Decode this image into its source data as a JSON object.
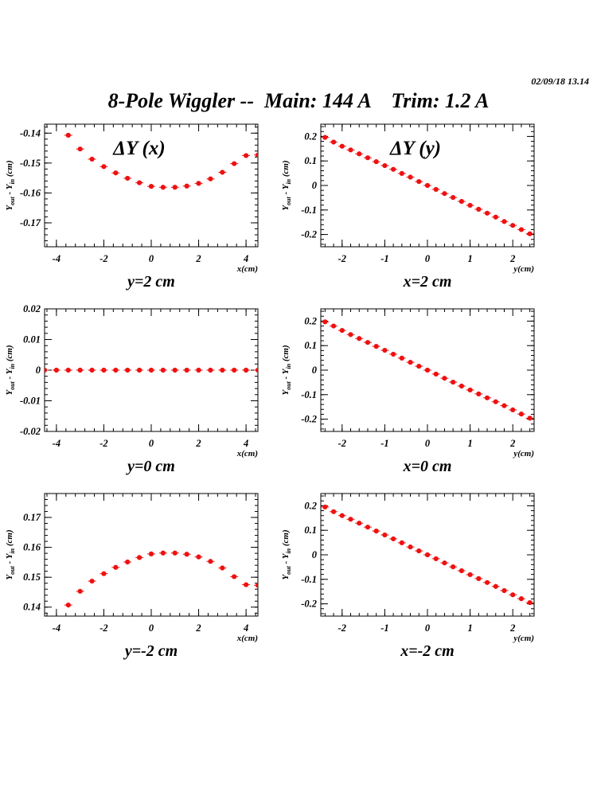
{
  "header": {
    "timestamp": "02/09/18   13.14",
    "title": "8-Pole Wiggler --  Main: 144 A    Trim: 1.2 A"
  },
  "colors": {
    "marker": "#ee1111",
    "axis": "#000000",
    "background": "#ffffff"
  },
  "chart_data": [
    {
      "type": "scatter",
      "overlay": "ΔY (x)",
      "caption": "y=2 cm",
      "x_unit_label": "x(cm)",
      "y_label": {
        "main": "Y",
        "sub1": "out",
        "mid": " - Y",
        "sub2": "in",
        "tail": " (cm)"
      },
      "xlim": [
        -4.5,
        4.5
      ],
      "ylim": [
        -0.178,
        -0.137
      ],
      "xticks": [
        -4,
        -2,
        0,
        2,
        4
      ],
      "yticks": [
        -0.17,
        -0.16,
        -0.15,
        -0.14
      ],
      "ytick_labels": [
        "-0.17",
        "-0.16",
        "-0.15",
        "-0.14"
      ],
      "series": [
        {
          "x": [
            -3.5,
            -3.0,
            -2.5,
            -2.0,
            -1.5,
            -1.0,
            -0.5,
            0.0,
            0.5,
            1.0,
            1.5,
            2.0,
            2.5,
            3.0,
            3.5,
            4.0,
            4.5
          ],
          "y": [
            -0.1407,
            -0.1453,
            -0.1487,
            -0.1512,
            -0.1533,
            -0.1551,
            -0.1566,
            -0.1578,
            -0.1581,
            -0.1581,
            -0.1577,
            -0.1568,
            -0.1553,
            -0.1531,
            -0.1502,
            -0.1475,
            -0.1473
          ]
        }
      ]
    },
    {
      "type": "scatter",
      "overlay": "ΔY (y)",
      "caption": "x=2 cm",
      "x_unit_label": "y(cm)",
      "y_label": {
        "main": "Y",
        "sub1": "out",
        "mid": " - Y",
        "sub2": "in",
        "tail": " (cm)"
      },
      "xlim": [
        -2.5,
        2.5
      ],
      "ylim": [
        -0.25,
        0.25
      ],
      "xticks": [
        -2,
        -1,
        0,
        1,
        2
      ],
      "yticks": [
        -0.2,
        -0.1,
        0,
        0.1,
        0.2
      ],
      "ytick_labels": [
        "-0.2",
        "-0.1",
        "0",
        "0.1",
        "0.2"
      ],
      "series": [
        {
          "x": [
            -2.4,
            -2.2,
            -2.0,
            -1.8,
            -1.6,
            -1.4,
            -1.2,
            -1.0,
            -0.8,
            -0.6,
            -0.4,
            -0.2,
            0.0,
            0.2,
            0.4,
            0.6,
            0.8,
            1.0,
            1.2,
            1.4,
            1.6,
            1.8,
            2.0,
            2.2,
            2.4
          ],
          "y": [
            0.196,
            0.177,
            0.16,
            0.145,
            0.129,
            0.113,
            0.097,
            0.081,
            0.066,
            0.049,
            0.034,
            0.016,
            0.0,
            -0.016,
            -0.033,
            -0.049,
            -0.065,
            -0.081,
            -0.097,
            -0.113,
            -0.129,
            -0.147,
            -0.163,
            -0.18,
            -0.197
          ]
        }
      ]
    },
    {
      "type": "scatter",
      "overlay": "",
      "caption": "y=0 cm",
      "x_unit_label": "x(cm)",
      "y_label": {
        "main": "Y",
        "sub1": "out",
        "mid": " - Y",
        "sub2": "in",
        "tail": " (cm)"
      },
      "xlim": [
        -4.5,
        4.5
      ],
      "ylim": [
        -0.02,
        0.02
      ],
      "xticks": [
        -4,
        -2,
        0,
        2,
        4
      ],
      "yticks": [
        -0.02,
        -0.01,
        0,
        0.01,
        0.02
      ],
      "ytick_labels": [
        "-0.02",
        "-0.01",
        "0",
        "0.01",
        "0.02"
      ],
      "series": [
        {
          "x": [
            -4.5,
            -4.0,
            -3.5,
            -3.0,
            -2.5,
            -2.0,
            -1.5,
            -1.0,
            -0.5,
            0.0,
            0.5,
            1.0,
            1.5,
            2.0,
            2.5,
            3.0,
            3.5,
            4.0,
            4.5
          ],
          "y": [
            0,
            0,
            0,
            0,
            0,
            0,
            0,
            0,
            0,
            0,
            0,
            0,
            0,
            0,
            0,
            0,
            0,
            0,
            0
          ]
        }
      ]
    },
    {
      "type": "scatter",
      "overlay": "",
      "caption": "x=0 cm",
      "x_unit_label": "y(cm)",
      "y_label": {
        "main": "Y",
        "sub1": "out",
        "mid": " - Y",
        "sub2": "in",
        "tail": " (cm)"
      },
      "xlim": [
        -2.5,
        2.5
      ],
      "ylim": [
        -0.25,
        0.25
      ],
      "xticks": [
        -2,
        -1,
        0,
        1,
        2
      ],
      "yticks": [
        -0.2,
        -0.1,
        0,
        0.1,
        0.2
      ],
      "ytick_labels": [
        "-0.2",
        "-0.1",
        "0",
        "0.1",
        "0.2"
      ],
      "series": [
        {
          "x": [
            -2.4,
            -2.2,
            -2.0,
            -1.8,
            -1.6,
            -1.4,
            -1.2,
            -1.0,
            -0.8,
            -0.6,
            -0.4,
            -0.2,
            0.0,
            0.2,
            0.4,
            0.6,
            0.8,
            1.0,
            1.2,
            1.4,
            1.6,
            1.8,
            2.0,
            2.2,
            2.4
          ],
          "y": [
            0.197,
            0.18,
            0.162,
            0.145,
            0.129,
            0.113,
            0.097,
            0.081,
            0.065,
            0.049,
            0.032,
            0.016,
            0.0,
            -0.016,
            -0.033,
            -0.049,
            -0.065,
            -0.081,
            -0.097,
            -0.113,
            -0.129,
            -0.145,
            -0.162,
            -0.179,
            -0.196
          ]
        }
      ]
    },
    {
      "type": "scatter",
      "overlay": "",
      "caption": "y=-2 cm",
      "x_unit_label": "x(cm)",
      "y_label": {
        "main": "Y",
        "sub1": "out",
        "mid": " - Y",
        "sub2": "in",
        "tail": " (cm)"
      },
      "xlim": [
        -4.5,
        4.5
      ],
      "ylim": [
        0.137,
        0.178
      ],
      "xticks": [
        -4,
        -2,
        0,
        2,
        4
      ],
      "yticks": [
        0.14,
        0.15,
        0.16,
        0.17
      ],
      "ytick_labels": [
        "0.14",
        "0.15",
        "0.16",
        "0.17"
      ],
      "series": [
        {
          "x": [
            -3.5,
            -3.0,
            -2.5,
            -2.0,
            -1.5,
            -1.0,
            -0.5,
            0.0,
            0.5,
            1.0,
            1.5,
            2.0,
            2.5,
            3.0,
            3.5,
            4.0,
            4.5
          ],
          "y": [
            0.1407,
            0.1453,
            0.1487,
            0.1512,
            0.1533,
            0.1551,
            0.1566,
            0.1578,
            0.1581,
            0.1581,
            0.1577,
            0.1568,
            0.1553,
            0.1531,
            0.1502,
            0.1475,
            0.1473
          ]
        }
      ]
    },
    {
      "type": "scatter",
      "overlay": "",
      "caption": "x=-2 cm",
      "x_unit_label": "y(cm)",
      "y_label": {
        "main": "Y",
        "sub1": "out",
        "mid": " - Y",
        "sub2": "in",
        "tail": " (cm)"
      },
      "xlim": [
        -2.5,
        2.5
      ],
      "ylim": [
        -0.25,
        0.25
      ],
      "xticks": [
        -2,
        -1,
        0,
        1,
        2
      ],
      "yticks": [
        -0.2,
        -0.1,
        0,
        0.1,
        0.2
      ],
      "ytick_labels": [
        "-0.2",
        "-0.1",
        "0",
        "0.1",
        "0.2"
      ],
      "series": [
        {
          "x": [
            -2.4,
            -2.2,
            -2.0,
            -1.8,
            -1.6,
            -1.4,
            -1.2,
            -1.0,
            -0.8,
            -0.6,
            -0.4,
            -0.2,
            0.0,
            0.2,
            0.4,
            0.6,
            0.8,
            1.0,
            1.2,
            1.4,
            1.6,
            1.8,
            2.0,
            2.2,
            2.4
          ],
          "y": [
            0.195,
            0.176,
            0.16,
            0.145,
            0.129,
            0.113,
            0.097,
            0.081,
            0.065,
            0.049,
            0.032,
            0.016,
            0.0,
            -0.016,
            -0.033,
            -0.049,
            -0.065,
            -0.081,
            -0.097,
            -0.113,
            -0.129,
            -0.146,
            -0.163,
            -0.179,
            -0.195
          ]
        }
      ]
    }
  ]
}
